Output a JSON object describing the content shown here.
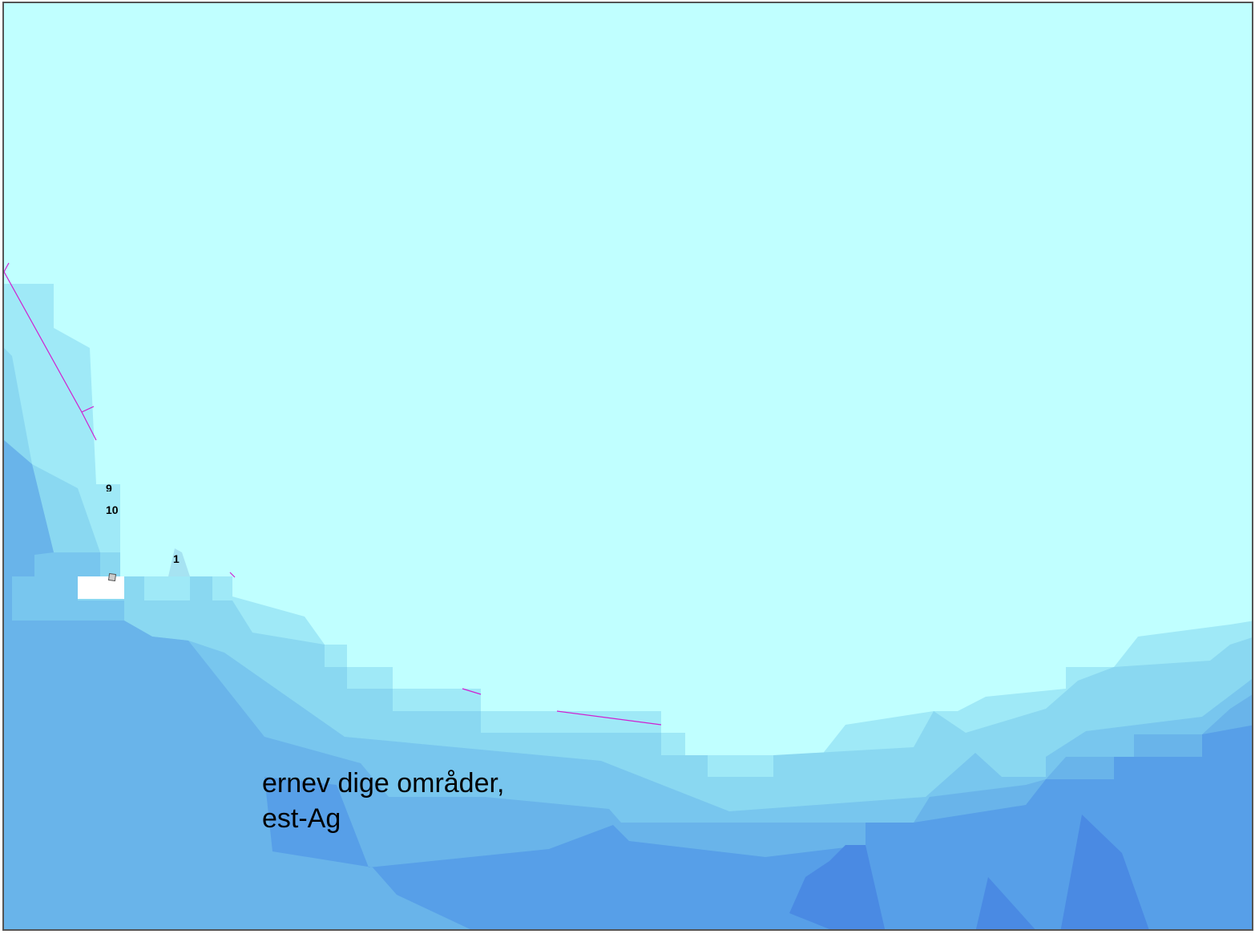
{
  "map": {
    "colors": {
      "background": "#c0ffff",
      "depth_1": "#9fe9f7",
      "depth_2": "#8ad8f1",
      "depth_3": "#78c6ee",
      "depth_4": "#69b4ea",
      "depth_5": "#579fe8",
      "depth_6": "#4a8ae3",
      "boundary": "#d020d0",
      "frame": "#555555"
    },
    "depth_labels": [
      "9",
      "10",
      "1"
    ],
    "area_label": {
      "line1": "ernev  dige områder,",
      "line2": "est-Ag"
    }
  }
}
